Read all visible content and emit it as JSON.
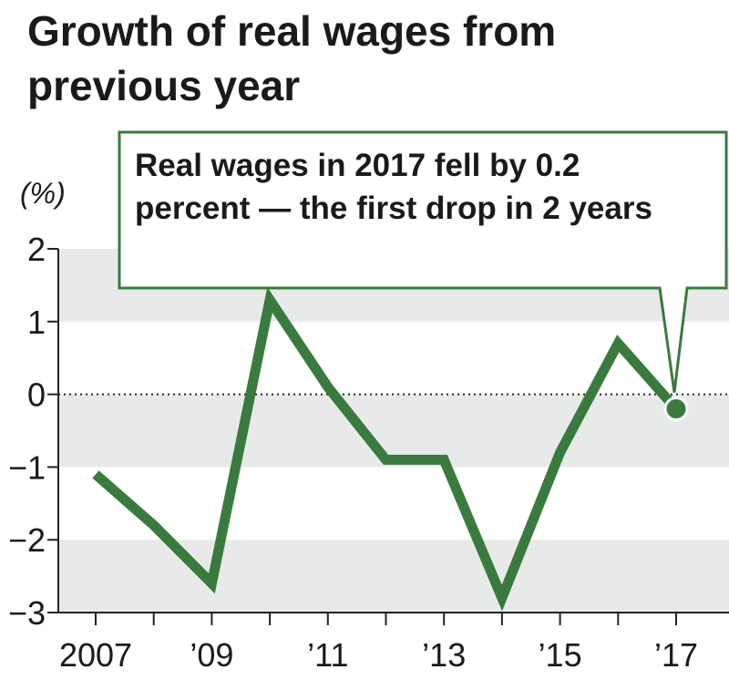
{
  "title": "Growth of real wages from previous year",
  "callout": {
    "text": "Real wages in 2017 fell by 0.2 percent — the first drop in 2 years"
  },
  "colors": {
    "line": "#3a7a3e",
    "band": "#e8eaea",
    "callout_border": "#3a7a3e",
    "text": "#1a1a1a"
  },
  "chart_data": {
    "type": "line",
    "title": "Growth of real wages from previous year",
    "unit": "(%)",
    "x": [
      2007,
      2008,
      2009,
      2010,
      2011,
      2012,
      2013,
      2014,
      2015,
      2016,
      2017
    ],
    "series": [
      {
        "values": [
          -1.1,
          -1.8,
          -2.6,
          1.3,
          0.1,
          -0.9,
          -0.9,
          -2.8,
          -0.8,
          0.7,
          -0.2
        ]
      }
    ],
    "ylim": [
      -3,
      2
    ],
    "yticks": [
      2,
      1,
      0,
      -1,
      -2,
      -3
    ],
    "ytick_labels": [
      "2",
      "1",
      "0",
      "−1",
      "−2",
      "−3"
    ],
    "xtick_years": [
      2007,
      2009,
      2011,
      2013,
      2015,
      2017
    ],
    "xtick_labels": [
      "2007",
      "’09",
      "’11",
      "’13",
      "’15",
      "’17"
    ],
    "highlight_point": {
      "x": 2017,
      "y": -0.2
    },
    "zero_line": "dotted",
    "grid": "alternating horizontal bands"
  }
}
